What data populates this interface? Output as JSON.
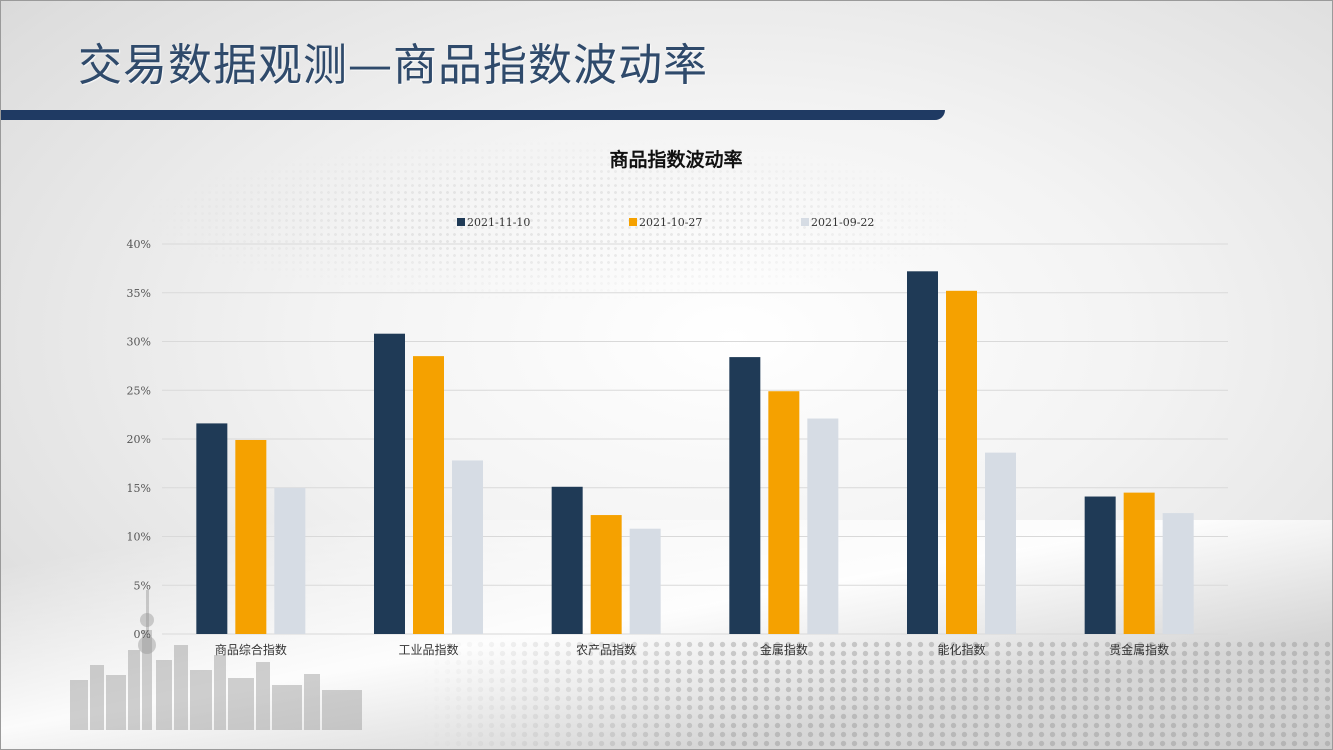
{
  "page": {
    "title": "交易数据观测—商品指数波动率"
  },
  "chart_data": {
    "type": "bar",
    "title": "商品指数波动率",
    "categories": [
      "商品综合指数",
      "工业品指数",
      "农产品指数",
      "金属指数",
      "能化指数",
      "贵金属指数"
    ],
    "series": [
      {
        "name": "2021-11-10",
        "color": "#1f3a56",
        "values": [
          21.6,
          30.8,
          15.1,
          28.4,
          37.2,
          14.1
        ]
      },
      {
        "name": "2021-10-27",
        "color": "#f5a100",
        "values": [
          19.9,
          28.5,
          12.2,
          24.9,
          35.2,
          14.5
        ]
      },
      {
        "name": "2021-09-22",
        "color": "#d6dce4",
        "values": [
          15.0,
          17.8,
          10.8,
          22.1,
          18.6,
          12.4
        ]
      }
    ],
    "ylim": [
      0,
      40
    ],
    "yticks": [
      0,
      5,
      10,
      15,
      20,
      25,
      30,
      35,
      40
    ],
    "ytick_labels": [
      "0%",
      "5%",
      "10%",
      "15%",
      "20%",
      "25%",
      "30%",
      "35%",
      "40%"
    ],
    "legend_position": "top",
    "grid": true,
    "xlabel": "",
    "ylabel": ""
  }
}
